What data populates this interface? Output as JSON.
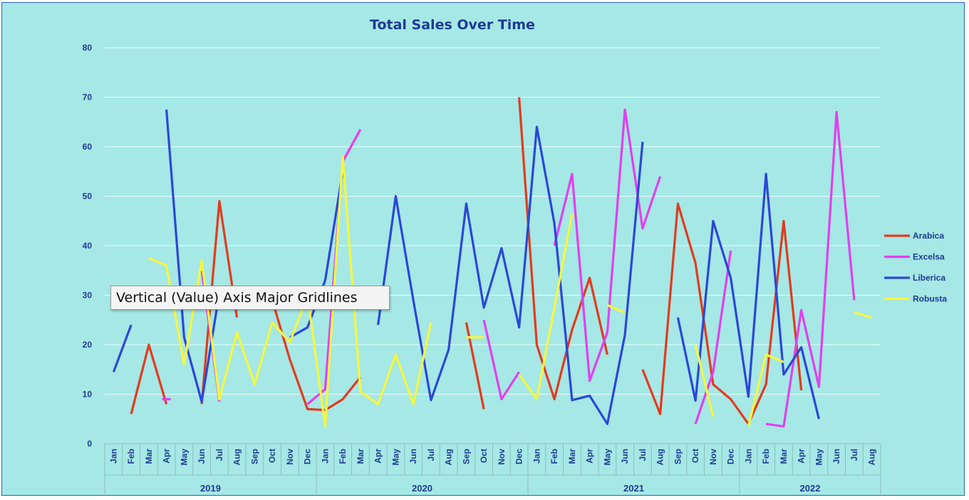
{
  "chart_data": {
    "type": "line",
    "title": "Total Sales Over Time",
    "ylim": [
      0,
      80
    ],
    "yticks": [
      "0",
      "10",
      "20",
      "30",
      "40",
      "50",
      "60",
      "70",
      "80"
    ],
    "grid": true,
    "legend_position": "right",
    "categories": [
      "Jan",
      "Feb",
      "Mar",
      "Apr",
      "May",
      "Jun",
      "Jul",
      "Aug",
      "Sep",
      "Oct",
      "Nov",
      "Dec",
      "Jan",
      "Feb",
      "Mar",
      "Apr",
      "May",
      "Jun",
      "Jul",
      "Aug",
      "Sep",
      "Oct",
      "Nov",
      "Dec",
      "Jan",
      "Feb",
      "Mar",
      "Apr",
      "May",
      "Jun",
      "Jul",
      "Aug",
      "Sep",
      "Oct",
      "Nov",
      "Dec",
      "Jan",
      "Feb",
      "Mar",
      "Apr",
      "May",
      "Jun",
      "Jul",
      "Aug"
    ],
    "years": [
      {
        "label": "2019",
        "start": 0,
        "count": 12
      },
      {
        "label": "2020",
        "start": 12,
        "count": 12
      },
      {
        "label": "2021",
        "start": 24,
        "count": 12
      },
      {
        "label": "2022",
        "start": 36,
        "count": 8
      }
    ],
    "series": [
      {
        "name": "Arabica",
        "color": "#e23b1f",
        "values": [
          null,
          6,
          20,
          8,
          null,
          8,
          49,
          25.5,
          null,
          29,
          17,
          7,
          6.8,
          9,
          13.5,
          null,
          null,
          null,
          null,
          null,
          24.5,
          7,
          null,
          70,
          20,
          9,
          23,
          33.5,
          18,
          null,
          15,
          6,
          48.5,
          36.5,
          12,
          9,
          4,
          12,
          45,
          10.8,
          null,
          null,
          null,
          null
        ]
      },
      {
        "name": "Excelsa",
        "color": "#e040f0",
        "values": [
          null,
          null,
          null,
          9,
          null,
          35,
          8.5,
          null,
          null,
          null,
          null,
          8,
          11,
          57,
          63.5,
          null,
          null,
          null,
          null,
          null,
          null,
          25,
          9,
          14.5,
          null,
          40,
          54.5,
          12.7,
          22.5,
          67.5,
          43.5,
          54,
          null,
          4,
          14.5,
          39,
          null,
          4,
          3.5,
          27,
          11.5,
          67,
          29,
          null
        ]
      },
      {
        "name": "Liberica",
        "color": "#2c47d8",
        "values": [
          14.5,
          24,
          null,
          67.5,
          21.5,
          8.5,
          30.5,
          null,
          null,
          null,
          21.5,
          23.5,
          33,
          55,
          null,
          24,
          50,
          29,
          8.8,
          19,
          48.5,
          27.5,
          39.5,
          23.5,
          64,
          44.5,
          8.8,
          9.7,
          4,
          22,
          61,
          null,
          25.5,
          8.7,
          45,
          33.5,
          9.5,
          54.5,
          14,
          19.5,
          5,
          null,
          null,
          null
        ]
      },
      {
        "name": "Robusta",
        "color": "#f6f640",
        "values": [
          null,
          null,
          37.5,
          36,
          16,
          37,
          9,
          22.5,
          12,
          24.5,
          20.5,
          30,
          3.5,
          58,
          10.5,
          8,
          18,
          8,
          24.5,
          null,
          21.5,
          21.5,
          null,
          14,
          9,
          27.5,
          46.5,
          null,
          28,
          26.5,
          null,
          null,
          null,
          20,
          5.5,
          null,
          3.5,
          18,
          16.5,
          null,
          null,
          null,
          26.5,
          25.5
        ]
      }
    ]
  },
  "tooltip": {
    "text": "Vertical (Value) Axis Major Gridlines"
  }
}
